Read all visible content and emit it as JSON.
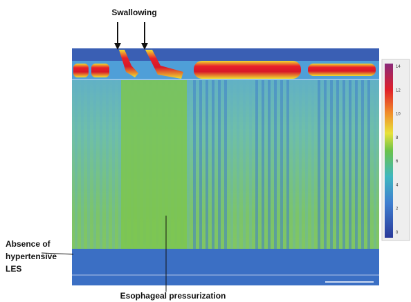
{
  "annotations": {
    "swallowing": "Swallowing",
    "les": [
      "Absence of",
      "hypertensive",
      "LES"
    ],
    "pressurization": "Esophageal pressurization"
  },
  "colorbar": {
    "labels": [
      "14",
      "12",
      "10",
      "8",
      "6",
      "4",
      "2",
      "0"
    ]
  }
}
